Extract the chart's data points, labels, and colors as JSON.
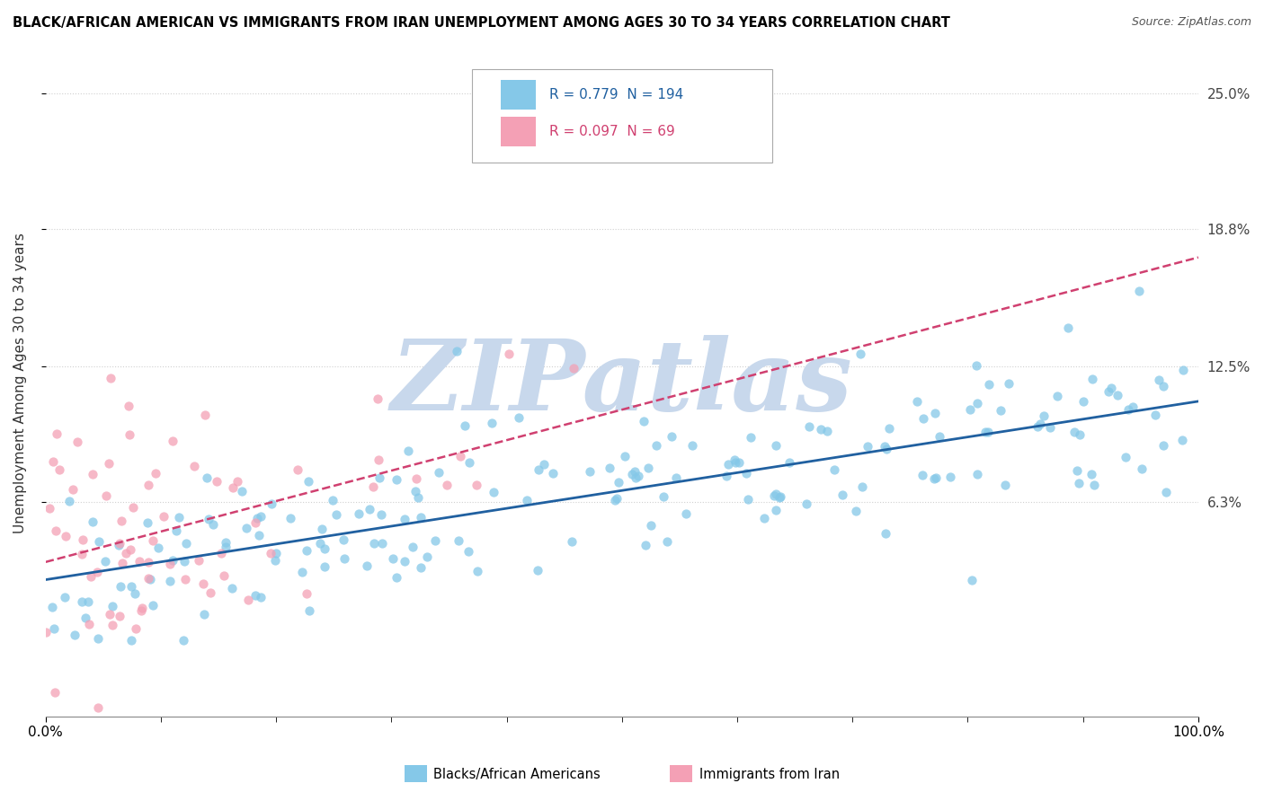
{
  "title": "BLACK/AFRICAN AMERICAN VS IMMIGRANTS FROM IRAN UNEMPLOYMENT AMONG AGES 30 TO 34 YEARS CORRELATION CHART",
  "source": "Source: ZipAtlas.com",
  "ylabel": "Unemployment Among Ages 30 to 34 years",
  "xlim": [
    0,
    100
  ],
  "ylim": [
    -3.5,
    27
  ],
  "yticks": [
    6.3,
    12.5,
    18.8,
    25.0
  ],
  "ytick_labels": [
    "6.3%",
    "12.5%",
    "18.8%",
    "25.0%"
  ],
  "xtick_labels": [
    "0.0%",
    "100.0%"
  ],
  "blue_R": 0.779,
  "blue_N": 194,
  "pink_R": 0.097,
  "pink_N": 69,
  "blue_color": "#85c8e8",
  "pink_color": "#f4a0b5",
  "blue_line_color": "#2060a0",
  "pink_line_color": "#d04070",
  "watermark": "ZIPatlas",
  "watermark_color": "#c8d8ec",
  "legend_label_blue": "Blacks/African Americans",
  "legend_label_pink": "Immigrants from Iran",
  "blue_seed": 42,
  "pink_seed": 7
}
